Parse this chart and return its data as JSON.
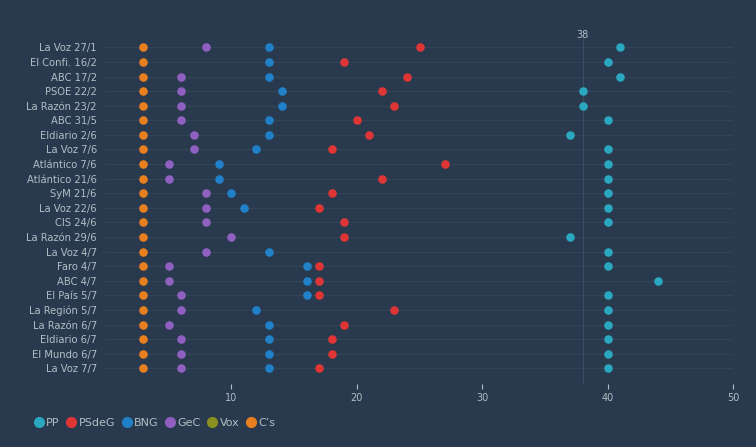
{
  "background_color": "#2a3a4e",
  "grid_color": "#3d5066",
  "text_color": "#b0bec5",
  "parties": [
    "PP",
    "PSdeG",
    "BNG",
    "GeC",
    "Vox",
    "C’s"
  ],
  "party_colors": {
    "PP": "#29a8c0",
    "PSdeG": "#e03535",
    "BNG": "#2080c8",
    "GeC": "#9060c0",
    "Vox": "#8b9020",
    "C’s": "#e88020"
  },
  "y_labels": [
    "La Voz 27/1",
    "El Confi. 16/2",
    "ABC 17/2",
    "PSOE 22/2",
    "La Razón 23/2",
    "ABC 31/5",
    "Eldiario 2/6",
    "La Voz 7/6",
    "Atlántico 7/6",
    "Atlántico 21/6",
    "SyM 21/6",
    "La Voz 22/6",
    "CIS 24/6",
    "La Razón 29/6",
    "La Voz 4/7",
    "Faro 4/7",
    "ABC 4/7",
    "El País 5/7",
    "La Región 5/7",
    "La Razón 6/7",
    "Eldiario 6/7",
    "El Mundo 6/7",
    "La Voz 7/7"
  ],
  "dot_data": [
    {
      "row": "La Voz 27/1",
      "party": "C’s",
      "x": 3
    },
    {
      "row": "La Voz 27/1",
      "party": "GeC",
      "x": 8
    },
    {
      "row": "La Voz 27/1",
      "party": "BNG",
      "x": 13
    },
    {
      "row": "La Voz 27/1",
      "party": "PSdeG",
      "x": 25
    },
    {
      "row": "La Voz 27/1",
      "party": "PP",
      "x": 41
    },
    {
      "row": "El Confi. 16/2",
      "party": "C’s",
      "x": 3
    },
    {
      "row": "El Confi. 16/2",
      "party": "BNG",
      "x": 13
    },
    {
      "row": "El Confi. 16/2",
      "party": "PSdeG",
      "x": 19
    },
    {
      "row": "El Confi. 16/2",
      "party": "PP",
      "x": 40
    },
    {
      "row": "ABC 17/2",
      "party": "C’s",
      "x": 3
    },
    {
      "row": "ABC 17/2",
      "party": "GeC",
      "x": 6
    },
    {
      "row": "ABC 17/2",
      "party": "BNG",
      "x": 13
    },
    {
      "row": "ABC 17/2",
      "party": "PSdeG",
      "x": 24
    },
    {
      "row": "ABC 17/2",
      "party": "PP",
      "x": 41
    },
    {
      "row": "PSOE 22/2",
      "party": "C’s",
      "x": 3
    },
    {
      "row": "PSOE 22/2",
      "party": "GeC",
      "x": 6
    },
    {
      "row": "PSOE 22/2",
      "party": "BNG",
      "x": 14
    },
    {
      "row": "PSOE 22/2",
      "party": "PSdeG",
      "x": 22
    },
    {
      "row": "PSOE 22/2",
      "party": "PP",
      "x": 38
    },
    {
      "row": "La Razón 23/2",
      "party": "C’s",
      "x": 3
    },
    {
      "row": "La Razón 23/2",
      "party": "GeC",
      "x": 6
    },
    {
      "row": "La Razón 23/2",
      "party": "BNG",
      "x": 14
    },
    {
      "row": "La Razón 23/2",
      "party": "PSdeG",
      "x": 23
    },
    {
      "row": "La Razón 23/2",
      "party": "PP",
      "x": 38
    },
    {
      "row": "ABC 31/5",
      "party": "C’s",
      "x": 3
    },
    {
      "row": "ABC 31/5",
      "party": "GeC",
      "x": 6
    },
    {
      "row": "ABC 31/5",
      "party": "BNG",
      "x": 13
    },
    {
      "row": "ABC 31/5",
      "party": "PSdeG",
      "x": 20
    },
    {
      "row": "ABC 31/5",
      "party": "PP",
      "x": 40
    },
    {
      "row": "Eldiario 2/6",
      "party": "C’s",
      "x": 3
    },
    {
      "row": "Eldiario 2/6",
      "party": "GeC",
      "x": 7
    },
    {
      "row": "Eldiario 2/6",
      "party": "BNG",
      "x": 13
    },
    {
      "row": "Eldiario 2/6",
      "party": "PSdeG",
      "x": 21
    },
    {
      "row": "Eldiario 2/6",
      "party": "PP",
      "x": 37
    },
    {
      "row": "La Voz 7/6",
      "party": "C’s",
      "x": 3
    },
    {
      "row": "La Voz 7/6",
      "party": "GeC",
      "x": 7
    },
    {
      "row": "La Voz 7/6",
      "party": "BNG",
      "x": 12
    },
    {
      "row": "La Voz 7/6",
      "party": "PSdeG",
      "x": 18
    },
    {
      "row": "La Voz 7/6",
      "party": "PP",
      "x": 40
    },
    {
      "row": "Atlántico 7/6",
      "party": "C’s",
      "x": 3
    },
    {
      "row": "Atlántico 7/6",
      "party": "GeC",
      "x": 5
    },
    {
      "row": "Atlántico 7/6",
      "party": "BNG",
      "x": 9
    },
    {
      "row": "Atlántico 7/6",
      "party": "PSdeG",
      "x": 27
    },
    {
      "row": "Atlántico 7/6",
      "party": "PP",
      "x": 40
    },
    {
      "row": "Atlántico 21/6",
      "party": "C’s",
      "x": 3
    },
    {
      "row": "Atlántico 21/6",
      "party": "GeC",
      "x": 5
    },
    {
      "row": "Atlántico 21/6",
      "party": "BNG",
      "x": 9
    },
    {
      "row": "Atlántico 21/6",
      "party": "PSdeG",
      "x": 22
    },
    {
      "row": "Atlántico 21/6",
      "party": "PP",
      "x": 40
    },
    {
      "row": "SyM 21/6",
      "party": "C’s",
      "x": 3
    },
    {
      "row": "SyM 21/6",
      "party": "GeC",
      "x": 8
    },
    {
      "row": "SyM 21/6",
      "party": "BNG",
      "x": 10
    },
    {
      "row": "SyM 21/6",
      "party": "PSdeG",
      "x": 18
    },
    {
      "row": "SyM 21/6",
      "party": "PP",
      "x": 40
    },
    {
      "row": "La Voz 22/6",
      "party": "C’s",
      "x": 3
    },
    {
      "row": "La Voz 22/6",
      "party": "GeC",
      "x": 8
    },
    {
      "row": "La Voz 22/6",
      "party": "BNG",
      "x": 11
    },
    {
      "row": "La Voz 22/6",
      "party": "PSdeG",
      "x": 17
    },
    {
      "row": "La Voz 22/6",
      "party": "PP",
      "x": 40
    },
    {
      "row": "CIS 24/6",
      "party": "C’s",
      "x": 3
    },
    {
      "row": "CIS 24/6",
      "party": "GeC",
      "x": 8
    },
    {
      "row": "CIS 24/6",
      "party": "PSdeG",
      "x": 19
    },
    {
      "row": "CIS 24/6",
      "party": "PP",
      "x": 40
    },
    {
      "row": "La Razón 29/6",
      "party": "C’s",
      "x": 3
    },
    {
      "row": "La Razón 29/6",
      "party": "GeC",
      "x": 10
    },
    {
      "row": "La Razón 29/6",
      "party": "PSdeG",
      "x": 19
    },
    {
      "row": "La Razón 29/6",
      "party": "PP",
      "x": 37
    },
    {
      "row": "La Voz 4/7",
      "party": "C’s",
      "x": 3
    },
    {
      "row": "La Voz 4/7",
      "party": "GeC",
      "x": 8
    },
    {
      "row": "La Voz 4/7",
      "party": "BNG",
      "x": 13
    },
    {
      "row": "La Voz 4/7",
      "party": "PP",
      "x": 40
    },
    {
      "row": "Faro 4/7",
      "party": "C’s",
      "x": 3
    },
    {
      "row": "Faro 4/7",
      "party": "GeC",
      "x": 5
    },
    {
      "row": "Faro 4/7",
      "party": "BNG",
      "x": 16
    },
    {
      "row": "Faro 4/7",
      "party": "PSdeG",
      "x": 17
    },
    {
      "row": "Faro 4/7",
      "party": "PP",
      "x": 40
    },
    {
      "row": "ABC 4/7",
      "party": "C’s",
      "x": 3
    },
    {
      "row": "ABC 4/7",
      "party": "GeC",
      "x": 5
    },
    {
      "row": "ABC 4/7",
      "party": "BNG",
      "x": 16
    },
    {
      "row": "ABC 4/7",
      "party": "PSdeG",
      "x": 17
    },
    {
      "row": "ABC 4/7",
      "party": "PP",
      "x": 44
    },
    {
      "row": "El País 5/7",
      "party": "C’s",
      "x": 3
    },
    {
      "row": "El País 5/7",
      "party": "GeC",
      "x": 6
    },
    {
      "row": "El País 5/7",
      "party": "BNG",
      "x": 16
    },
    {
      "row": "El País 5/7",
      "party": "PSdeG",
      "x": 17
    },
    {
      "row": "El País 5/7",
      "party": "PP",
      "x": 40
    },
    {
      "row": "La Región 5/7",
      "party": "C’s",
      "x": 3
    },
    {
      "row": "La Región 5/7",
      "party": "GeC",
      "x": 6
    },
    {
      "row": "La Región 5/7",
      "party": "BNG",
      "x": 12
    },
    {
      "row": "La Región 5/7",
      "party": "PSdeG",
      "x": 23
    },
    {
      "row": "La Región 5/7",
      "party": "PP",
      "x": 40
    },
    {
      "row": "La Razón 6/7",
      "party": "C’s",
      "x": 3
    },
    {
      "row": "La Razón 6/7",
      "party": "GeC",
      "x": 5
    },
    {
      "row": "La Razón 6/7",
      "party": "BNG",
      "x": 13
    },
    {
      "row": "La Razón 6/7",
      "party": "PSdeG",
      "x": 19
    },
    {
      "row": "La Razón 6/7",
      "party": "PP",
      "x": 40
    },
    {
      "row": "Eldiario 6/7",
      "party": "C’s",
      "x": 3
    },
    {
      "row": "Eldiario 6/7",
      "party": "GeC",
      "x": 6
    },
    {
      "row": "Eldiario 6/7",
      "party": "BNG",
      "x": 13
    },
    {
      "row": "Eldiario 6/7",
      "party": "PSdeG",
      "x": 18
    },
    {
      "row": "Eldiario 6/7",
      "party": "PP",
      "x": 40
    },
    {
      "row": "El Mundo 6/7",
      "party": "C’s",
      "x": 3
    },
    {
      "row": "El Mundo 6/7",
      "party": "GeC",
      "x": 6
    },
    {
      "row": "El Mundo 6/7",
      "party": "BNG",
      "x": 13
    },
    {
      "row": "El Mundo 6/7",
      "party": "PSdeG",
      "x": 18
    },
    {
      "row": "El Mundo 6/7",
      "party": "PP",
      "x": 40
    },
    {
      "row": "La Voz 7/7",
      "party": "C’s",
      "x": 3
    },
    {
      "row": "La Voz 7/7",
      "party": "GeC",
      "x": 6
    },
    {
      "row": "La Voz 7/7",
      "party": "BNG",
      "x": 13
    },
    {
      "row": "La Voz 7/7",
      "party": "PSdeG",
      "x": 17
    },
    {
      "row": "La Voz 7/7",
      "party": "PP",
      "x": 40
    }
  ],
  "xlim": [
    0,
    50
  ],
  "xticks": [
    10,
    20,
    30,
    40,
    50
  ],
  "vline_x": 38,
  "vline_label": "38",
  "dot_size": 38,
  "y_label_fontsize": 7.2,
  "x_tick_fontsize": 7,
  "legend_fontsize": 8,
  "legend_marker_size": 7
}
